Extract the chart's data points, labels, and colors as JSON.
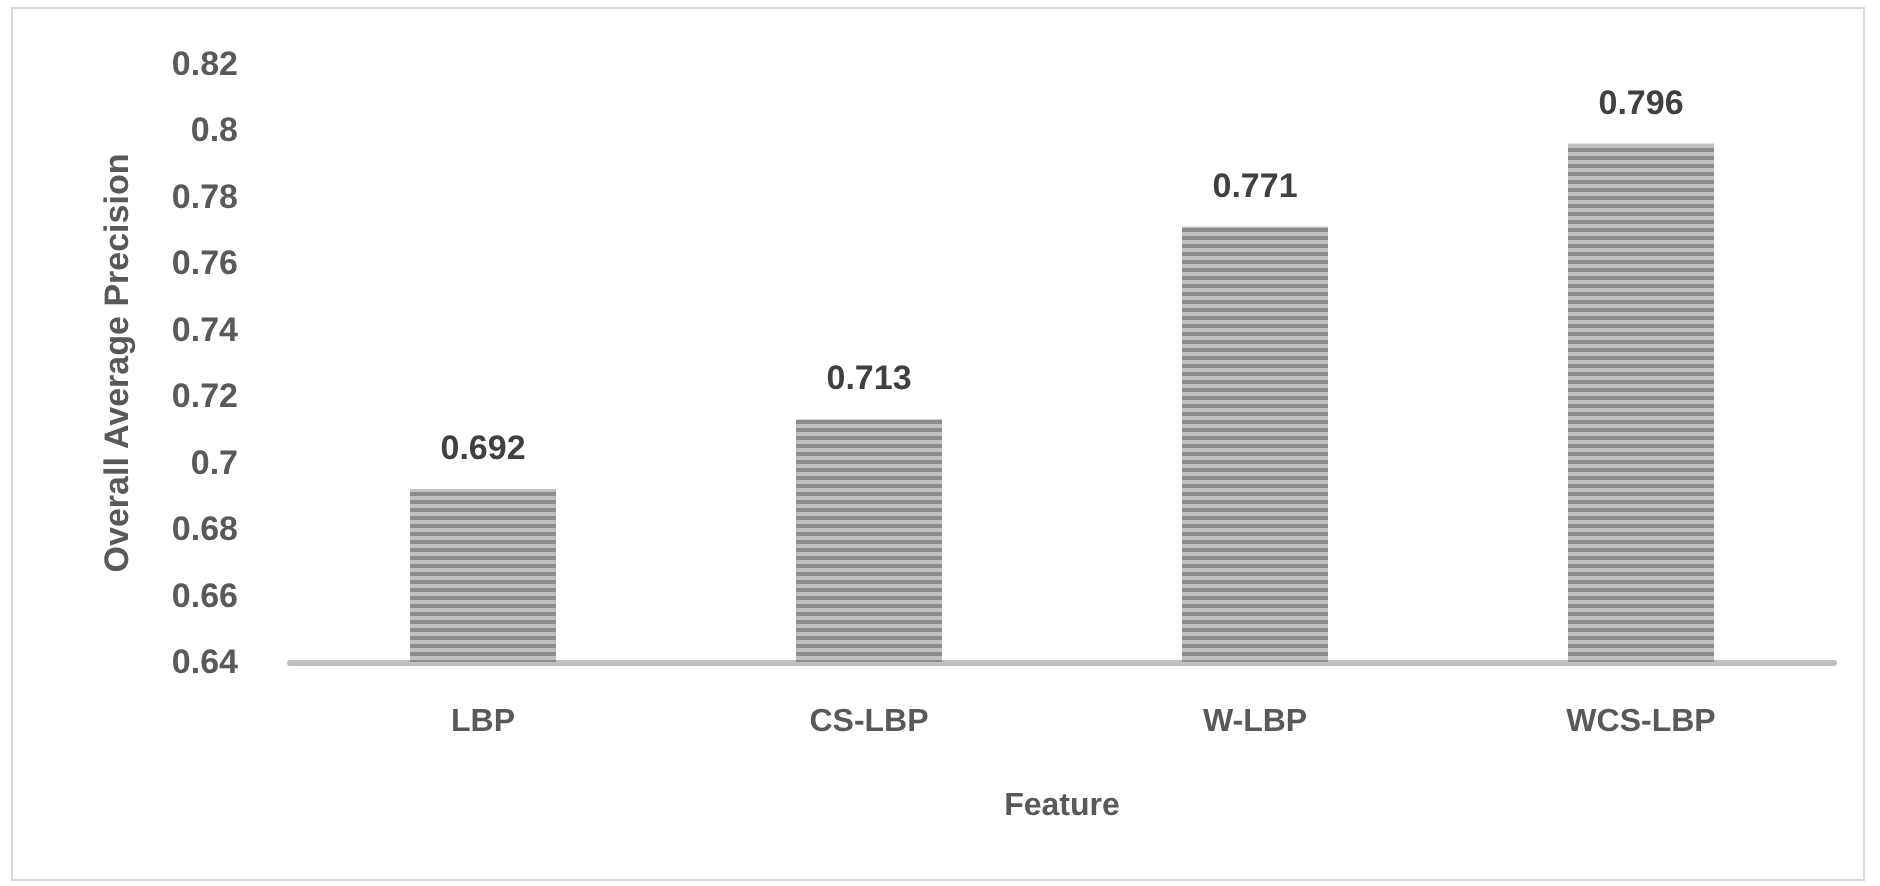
{
  "chart_data": {
    "type": "bar",
    "xlabel": "Feature",
    "ylabel": "Overall Average Precision",
    "categories": [
      "LBP",
      "CS-LBP",
      "W-LBP",
      "WCS-LBP"
    ],
    "values": [
      0.692,
      0.713,
      0.771,
      0.796
    ],
    "color": "#8c8c8c",
    "ylim": [
      0.64,
      0.82
    ],
    "yticks": [
      0.64,
      0.66,
      0.68,
      0.7,
      0.72,
      0.74,
      0.76,
      0.78,
      0.8,
      0.82
    ],
    "grid": false,
    "data_labels": true
  }
}
